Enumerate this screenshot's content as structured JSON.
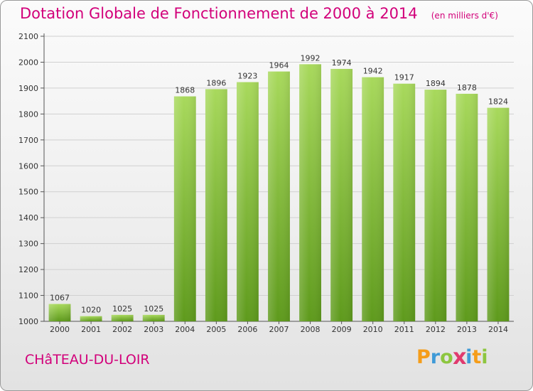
{
  "chart_data": {
    "type": "bar",
    "title": "Dotation Globale de Fonctionnement de 2000 à 2014",
    "subtitle": "(en milliers d'€)",
    "xlabel": "",
    "ylabel": "",
    "categories": [
      "2000",
      "2001",
      "2002",
      "2003",
      "2004",
      "2005",
      "2006",
      "2007",
      "2008",
      "2009",
      "2010",
      "2011",
      "2012",
      "2013",
      "2014"
    ],
    "values": [
      1067,
      1020,
      1025,
      1025,
      1868,
      1896,
      1923,
      1964,
      1992,
      1974,
      1942,
      1917,
      1894,
      1878,
      1824
    ],
    "ylim": [
      1000,
      2100
    ],
    "yticks": [
      1000,
      1100,
      1200,
      1300,
      1400,
      1500,
      1600,
      1700,
      1800,
      1900,
      2000,
      2100
    ],
    "grid": true,
    "legend": "none",
    "bar_color": "#7cc22e",
    "bar_highlight": "#a8d95c",
    "bar_shadow": "#5e9a1c"
  },
  "footer": {
    "commune": "CHâTEAU-DU-LOIR"
  },
  "brand": {
    "letters": [
      {
        "char": "P",
        "color": "#f59d1a"
      },
      {
        "char": "r",
        "color": "#3f9ad7"
      },
      {
        "char": "o",
        "color": "#8dc63f"
      },
      {
        "char": "x",
        "color": "#e03a6e"
      },
      {
        "char": "i",
        "color": "#3f9ad7"
      },
      {
        "char": "t",
        "color": "#f59d1a"
      },
      {
        "char": "i",
        "color": "#8dc63f"
      }
    ]
  },
  "colors": {
    "accent": "#d2007a",
    "grid": "#d0d0d0"
  }
}
